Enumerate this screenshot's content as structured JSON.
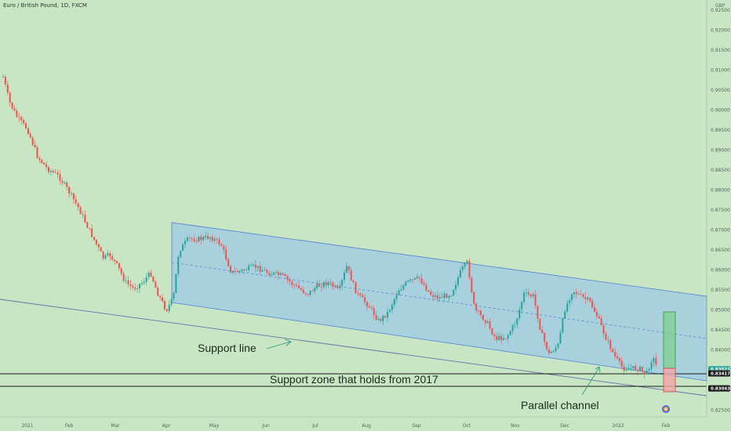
{
  "header": {
    "symbol": "Euro / British Pound, 1D, FXCM",
    "currency": "GBP"
  },
  "colors": {
    "background": "#c8e6c4",
    "up": "#26a69a",
    "down": "#ef5350",
    "channel_fill": "#9ec8e6",
    "channel_line": "#4f7fd0"
  },
  "chart_data": {
    "type": "candlestick",
    "y_ticks": [
      "0.92500",
      "0.92000",
      "0.91500",
      "0.91000",
      "0.90500",
      "0.90000",
      "0.89500",
      "0.89000",
      "0.88500",
      "0.88000",
      "0.87500",
      "0.87000",
      "0.86500",
      "0.86000",
      "0.85500",
      "0.85000",
      "0.84500",
      "0.84000",
      "0.83500",
      "0.82500"
    ],
    "x_ticks": [
      "2021",
      "Feb",
      "Mar",
      "Apr",
      "May",
      "Jun",
      "Jul",
      "Aug",
      "Sep",
      "Oct",
      "Nov",
      "Dec",
      "2022",
      "Feb"
    ],
    "ylim": [
      0.8233,
      0.9275
    ],
    "price_tags": [
      {
        "value": "0.83521",
        "y": 0.83521,
        "bg": "#26a69a",
        "fg": "#ffffff"
      },
      {
        "value": "0.83417",
        "y": 0.83417,
        "bg": "#1a1a1a",
        "fg": "#ffffff"
      },
      {
        "value": "0.83043",
        "y": 0.83043,
        "bg": "#1a1a1a",
        "fg": "#ffffff"
      }
    ],
    "annotations": {
      "support_line": "Support line",
      "support_zone": "Support zone that holds from 2017",
      "parallel_channel": "Parallel channel"
    },
    "horizontal_levels": [
      0.83417,
      0.83043
    ],
    "position": {
      "entry": 0.83521,
      "target": 0.8505,
      "stop": 0.8277
    }
  }
}
